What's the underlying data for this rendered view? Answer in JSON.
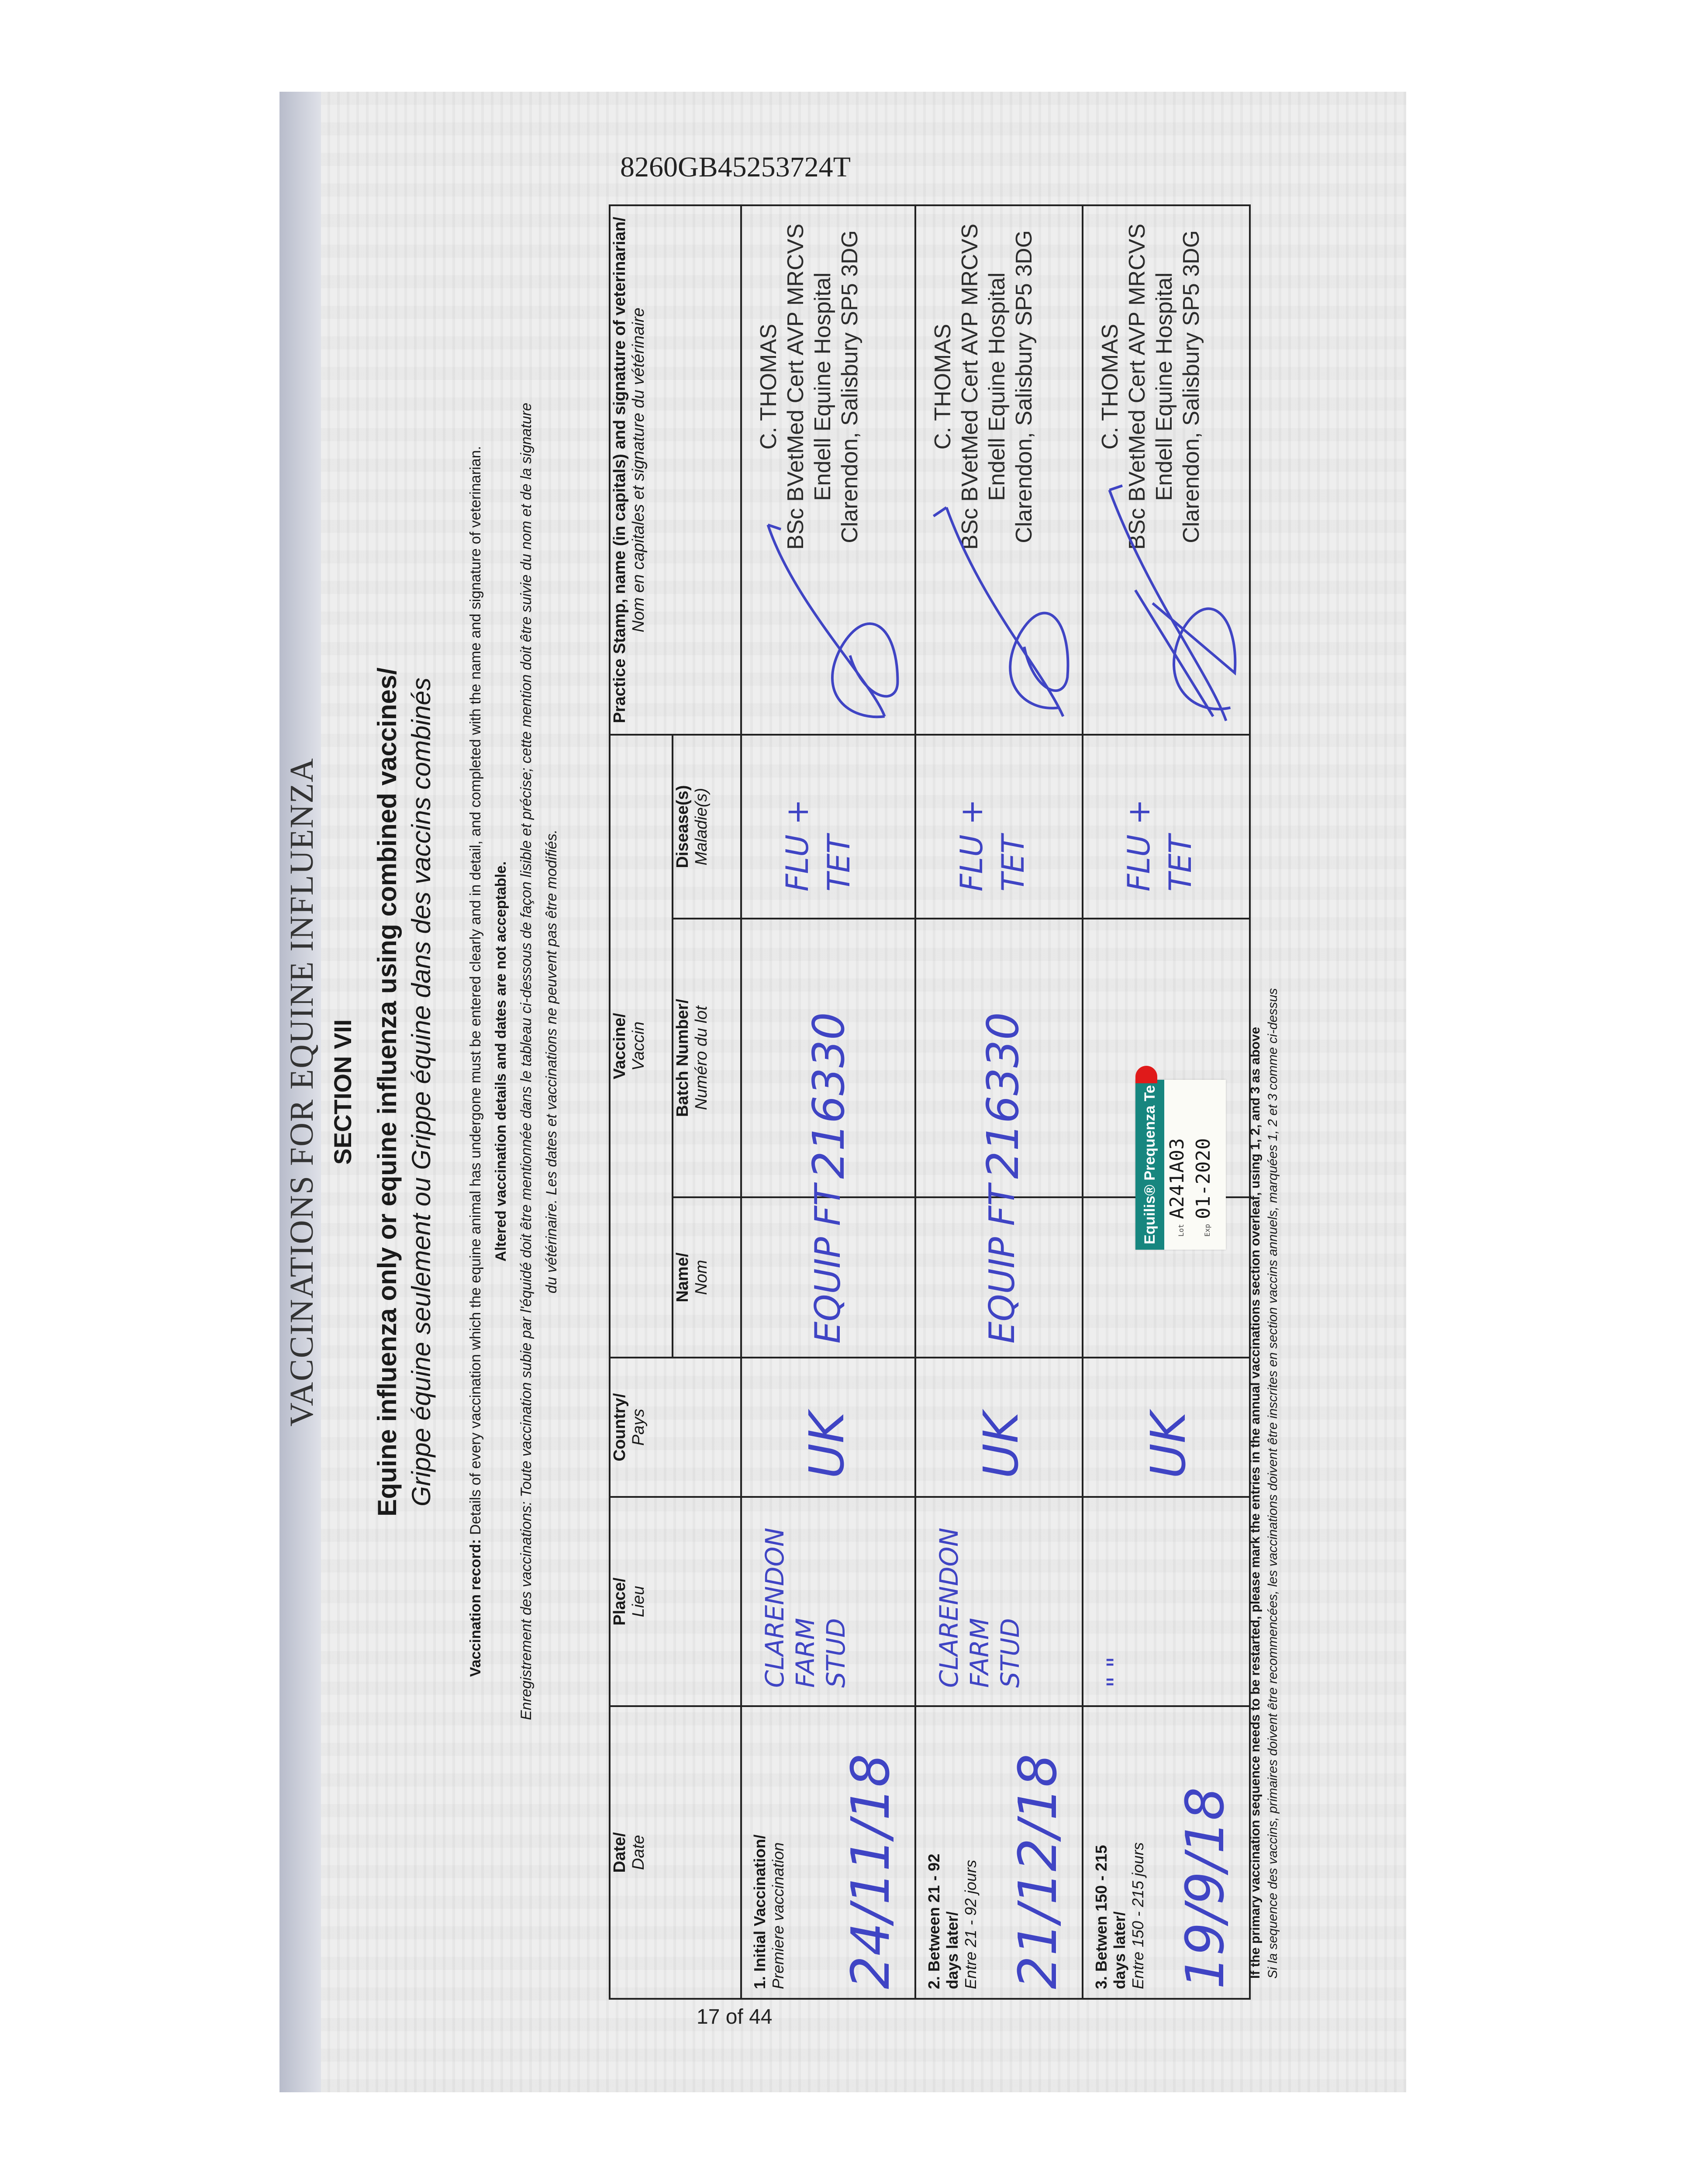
{
  "serial_number": "8260GB45253724T",
  "page_number": "17 of 44",
  "title": "VACCINATIONS FOR EQUINE INFLUENZA",
  "section": "SECTION VII",
  "heading_en": "Equine influenza only or equine influenza using combined vaccines/",
  "heading_fr": "Grippe équine seulement ou Grippe équine dans des vaccins combinés",
  "record_en": {
    "label": "Vaccination record:",
    "line1": "Details of every vaccination which the equine animal has undergone must be entered clearly and in detail, and completed with the name and signature of veterinarian.",
    "line2": "Altered vaccination details and dates are not acceptable."
  },
  "record_fr": {
    "line1": "Enregistrement des vaccinations: Toute vaccination subie par l'équidé doit être mentionnée dans le tableau ci-dessous de façon lisible et précise; cette mention doit être suivie du nom et de la signature",
    "line2": "du vétérinaire. Les dates et vaccinations ne peuvent pas être modifiés."
  },
  "table": {
    "headers": {
      "date": {
        "en": "Date/",
        "fr": "Date"
      },
      "place": {
        "en": "Place/",
        "fr": "Lieu"
      },
      "country": {
        "en": "Country/",
        "fr": "Pays"
      },
      "vaccine": {
        "en": "Vaccine/",
        "fr": "Vaccin"
      },
      "name": {
        "en": "Name/",
        "fr": "Nom"
      },
      "batch": {
        "en": "Batch Number/",
        "fr": "Numéro du lot"
      },
      "disease": {
        "en": "Disease(s)",
        "fr": "Maladie(s)"
      },
      "stamp": {
        "en": "Practice Stamp, name (in capitals) and signature of veterinarian/",
        "fr": "Nom en capitales et signature du vétérinaire"
      }
    },
    "rows": [
      {
        "label_en": "1. Initial Vaccination/",
        "label_en2": "",
        "label_fr": "Premiere vaccination",
        "date": "24/11/18",
        "place": [
          "CLARENDON",
          "FARM",
          "STUD"
        ],
        "country": "UK",
        "name": "EQUIP FT",
        "batch": "216330",
        "disease": [
          "FLU +",
          "TET"
        ],
        "stamp": [
          "C. THOMAS",
          "BSc BVetMed Cert AVP MRCVS",
          "Endell Equine Hospital",
          "Clarendon, Salisbury SP5 3DG"
        ]
      },
      {
        "label_en": "2. Between 21 - 92",
        "label_en2": "days later/",
        "label_fr": "Entre 21 - 92 jours",
        "date": "21/12/18",
        "place": [
          "CLARENDON",
          "FARM",
          "STUD"
        ],
        "country": "UK",
        "name": "EQUIP FT",
        "batch": "216330",
        "disease": [
          "FLU +",
          "TET"
        ],
        "stamp": [
          "C. THOMAS",
          "BSc BVetMed Cert AVP MRCVS",
          "Endell Equine Hospital",
          "Clarendon, Salisbury SP5 3DG"
        ]
      },
      {
        "label_en": "3. Betwen 150 - 215",
        "label_en2": "days later/",
        "label_fr": "Entre 150 - 215 jours",
        "date": "19/9/18",
        "place": [
          "\"   \""
        ],
        "country": "UK",
        "name": "",
        "batch": "",
        "disease": [
          "FLU +",
          "TET"
        ],
        "stamp": [
          "C. THOMAS",
          "BSc BVetMed Cert AVP MRCVS",
          "Endell Equine Hospital",
          "Clarendon, Salisbury SP5 3DG"
        ]
      }
    ]
  },
  "sticker": {
    "brand": "Equilis® Prequenza Te",
    "lot_label": "Lot",
    "lot": "A241A03",
    "exp_label": "Exp",
    "exp": "01-2020",
    "color": "#17867f"
  },
  "note_en": "If the primary vaccination sequence needs to be restarted, please mark the entries in the annual vaccinations section overleaf, using 1, 2, and 3 as above",
  "note_fr": "Si la sequence des vaccins, primaires doivent être recommencées, les vaccinations doivent être inscrites en section vaccins annuels, marquées 1, 2 et 3 comme ci-dessus",
  "ink_color": "#3f44c4"
}
